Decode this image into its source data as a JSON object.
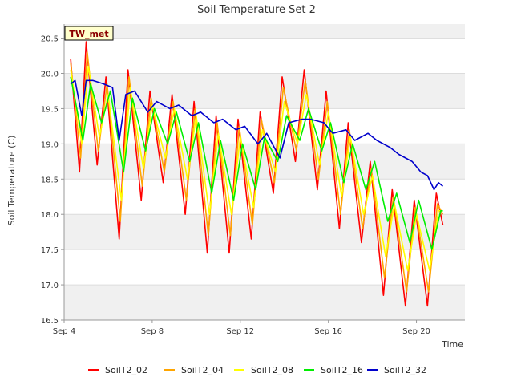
{
  "chart_data": {
    "type": "line",
    "title": "Soil Temperature Set 2",
    "xlabel": "Time",
    "ylabel": "Soil Temperature (C)",
    "site_label": "TW_met",
    "x_start": "Sep 4",
    "xlim": [
      4,
      22.2
    ],
    "ylim": [
      16.5,
      20.7
    ],
    "x_ticks": [
      {
        "label": "Sep 4",
        "value": 4
      },
      {
        "label": "Sep 8",
        "value": 8
      },
      {
        "label": "Sep 12",
        "value": 12
      },
      {
        "label": "Sep 16",
        "value": 16
      },
      {
        "label": "Sep 20",
        "value": 20
      }
    ],
    "y_ticks": [
      {
        "label": "16.5",
        "value": 16.5
      },
      {
        "label": "17.0",
        "value": 17.0
      },
      {
        "label": "17.5",
        "value": 17.5
      },
      {
        "label": "18.0",
        "value": 18.0
      },
      {
        "label": "18.5",
        "value": 18.5
      },
      {
        "label": "19.0",
        "value": 19.0
      },
      {
        "label": "19.5",
        "value": 19.5
      },
      {
        "label": "20.0",
        "value": 20.0
      },
      {
        "label": "20.5",
        "value": 20.5
      }
    ],
    "grid": true,
    "legend_position": "bottom",
    "series": [
      {
        "name": "SoilT2_02",
        "color": "#ff0000",
        "x": [
          4.3,
          4.7,
          5.0,
          5.5,
          5.9,
          6.5,
          6.9,
          7.5,
          7.9,
          8.5,
          8.9,
          9.5,
          9.9,
          10.5,
          10.9,
          11.5,
          11.9,
          12.5,
          12.9,
          13.5,
          13.9,
          14.5,
          14.9,
          15.5,
          15.9,
          16.5,
          16.9,
          17.5,
          17.9,
          18.5,
          18.9,
          19.5,
          19.9,
          20.5,
          20.9,
          21.2
        ],
        "values": [
          20.2,
          18.6,
          20.45,
          18.7,
          19.95,
          17.65,
          20.05,
          18.2,
          19.75,
          18.45,
          19.7,
          18.0,
          19.6,
          17.45,
          19.4,
          17.45,
          19.35,
          17.65,
          19.45,
          18.3,
          19.95,
          18.75,
          20.05,
          18.35,
          19.75,
          17.8,
          19.3,
          17.6,
          18.75,
          16.85,
          18.35,
          16.7,
          18.2,
          16.7,
          18.3,
          17.85
        ]
      },
      {
        "name": "SoilT2_04",
        "color": "#ffa500",
        "x": [
          4.3,
          4.75,
          5.05,
          5.55,
          5.95,
          6.55,
          6.95,
          7.55,
          7.95,
          8.55,
          8.95,
          9.55,
          9.95,
          10.55,
          10.95,
          11.55,
          11.95,
          12.55,
          12.95,
          13.55,
          13.95,
          14.55,
          14.95,
          15.55,
          15.95,
          16.55,
          16.95,
          17.55,
          17.95,
          18.55,
          18.95,
          19.55,
          19.95,
          20.55,
          20.95,
          21.2
        ],
        "values": [
          20.15,
          18.8,
          20.3,
          18.9,
          19.85,
          17.9,
          19.95,
          18.4,
          19.65,
          18.6,
          19.6,
          18.2,
          19.5,
          17.7,
          19.3,
          17.7,
          19.25,
          17.85,
          19.35,
          18.45,
          19.8,
          18.9,
          19.9,
          18.5,
          19.6,
          18.0,
          19.2,
          17.8,
          18.65,
          17.1,
          18.25,
          16.9,
          18.1,
          16.9,
          18.15,
          18.0
        ]
      },
      {
        "name": "SoilT2_08",
        "color": "#ffff00",
        "x": [
          4.3,
          4.8,
          5.1,
          5.6,
          6.0,
          6.6,
          7.0,
          7.6,
          8.0,
          8.6,
          9.0,
          9.6,
          10.0,
          10.6,
          11.0,
          11.6,
          12.0,
          12.6,
          13.0,
          13.6,
          14.0,
          14.6,
          15.0,
          15.6,
          16.0,
          16.6,
          17.0,
          17.6,
          18.0,
          18.6,
          19.0,
          19.6,
          20.0,
          20.6,
          21.0,
          21.2
        ],
        "values": [
          20.05,
          19.0,
          20.1,
          19.1,
          19.7,
          18.2,
          19.8,
          18.65,
          19.55,
          18.8,
          19.5,
          18.5,
          19.4,
          18.0,
          19.15,
          18.0,
          19.1,
          18.1,
          19.2,
          18.6,
          19.6,
          19.0,
          19.7,
          18.7,
          19.45,
          18.25,
          19.1,
          18.0,
          18.55,
          17.4,
          18.15,
          17.2,
          18.0,
          17.2,
          18.05,
          18.05
        ]
      },
      {
        "name": "SoilT2_16",
        "color": "#00ee00",
        "x": [
          4.3,
          4.85,
          5.2,
          5.7,
          6.1,
          6.7,
          7.1,
          7.7,
          8.1,
          8.7,
          9.1,
          9.7,
          10.1,
          10.7,
          11.1,
          11.7,
          12.1,
          12.7,
          13.1,
          13.7,
          14.1,
          14.7,
          15.1,
          15.7,
          16.1,
          16.7,
          17.1,
          17.7,
          18.1,
          18.7,
          19.1,
          19.7,
          20.1,
          20.7,
          21.1,
          21.2
        ],
        "values": [
          19.95,
          19.05,
          19.85,
          19.3,
          19.75,
          18.6,
          19.65,
          18.9,
          19.5,
          19.0,
          19.45,
          18.75,
          19.3,
          18.3,
          19.05,
          18.2,
          19.0,
          18.35,
          19.1,
          18.75,
          19.4,
          19.05,
          19.5,
          18.9,
          19.3,
          18.45,
          19.0,
          18.35,
          18.75,
          17.9,
          18.3,
          17.6,
          18.2,
          17.5,
          18.05,
          18.05
        ]
      },
      {
        "name": "SoilT2_32",
        "color": "#0000cc",
        "x": [
          4.3,
          4.5,
          4.8,
          5.0,
          5.3,
          5.8,
          6.2,
          6.5,
          6.8,
          7.2,
          7.8,
          8.2,
          8.8,
          9.2,
          9.8,
          10.2,
          10.8,
          11.2,
          11.8,
          12.2,
          12.8,
          13.2,
          13.8,
          14.2,
          14.8,
          15.2,
          15.8,
          16.2,
          16.8,
          17.2,
          17.8,
          18.2,
          18.8,
          19.2,
          19.8,
          20.2,
          20.5,
          20.8,
          21.0,
          21.2
        ],
        "values": [
          19.85,
          19.9,
          19.4,
          19.9,
          19.9,
          19.85,
          19.8,
          19.05,
          19.7,
          19.75,
          19.45,
          19.6,
          19.5,
          19.55,
          19.4,
          19.45,
          19.3,
          19.35,
          19.2,
          19.25,
          19.0,
          19.15,
          18.8,
          19.3,
          19.35,
          19.35,
          19.3,
          19.15,
          19.2,
          19.05,
          19.15,
          19.05,
          18.95,
          18.85,
          18.75,
          18.6,
          18.55,
          18.35,
          18.45,
          18.4
        ]
      }
    ]
  }
}
